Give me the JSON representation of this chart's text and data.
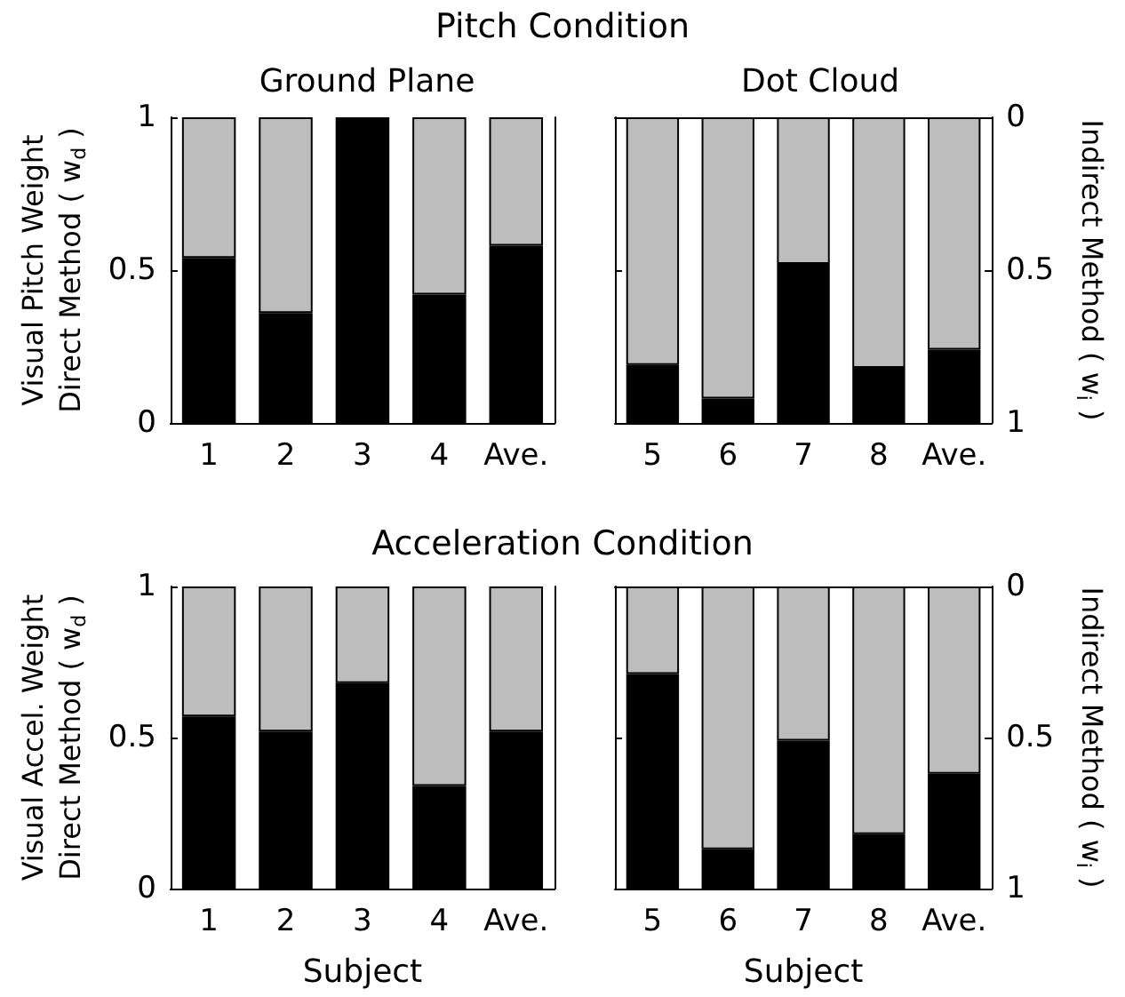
{
  "chart_data": [
    {
      "type": "bar",
      "title": "Pitch Condition",
      "subtitle": "Ground Plane",
      "ylabel": "Visual Pitch Weight\nDirect Method ( w$_{d}$ )",
      "categories": [
        "1",
        "2",
        "3",
        "4",
        "Ave."
      ],
      "stacked": true,
      "series": [
        {
          "color": "#000000",
          "values": [
            0.54,
            0.36,
            1.0,
            0.42,
            0.58
          ]
        },
        {
          "color": "#bdbdbd",
          "values": [
            0.46,
            0.64,
            0,
            0.58,
            0.42
          ]
        }
      ],
      "ylim": [
        0,
        1
      ],
      "yticks": [
        0,
        0.5,
        1
      ],
      "grid": false
    },
    {
      "type": "bar",
      "subtitle": "Dot Cloud",
      "y2label": "Indirect Method ( w$_{i}$ )",
      "categories": [
        "5",
        "6",
        "7",
        "8",
        "Ave."
      ],
      "stacked": true,
      "series": [
        {
          "color": "#bdbdbd",
          "axis": "y2",
          "values": [
            0.81,
            0.92,
            0.48,
            0.82,
            0.76
          ]
        },
        {
          "color": "#000000",
          "axis": "y2",
          "values": [
            0.19,
            0.08,
            0.52,
            0.18,
            0.24
          ]
        }
      ],
      "y2lim": [
        1,
        0
      ],
      "y2ticks": [
        0,
        0.5,
        1
      ],
      "grid": false
    },
    {
      "type": "bar",
      "title": "Acceleration Condition",
      "ylabel": "Visual Accel. Weight\nDirect Method ( w$_{d}$ )",
      "xlabel": "Subject",
      "categories": [
        "1",
        "2",
        "3",
        "4",
        "Ave."
      ],
      "stacked": true,
      "series": [
        {
          "color": "#000000",
          "values": [
            0.57,
            0.52,
            0.68,
            0.34,
            0.52
          ]
        },
        {
          "color": "#bdbdbd",
          "values": [
            0.43,
            0.48,
            0.32,
            0.66,
            0.48
          ]
        }
      ],
      "ylim": [
        0,
        1
      ],
      "yticks": [
        0,
        0.5,
        1
      ],
      "grid": false
    },
    {
      "type": "bar",
      "y2label": "Indirect Method ( w$_{i}$ )",
      "xlabel": "Subject",
      "categories": [
        "5",
        "6",
        "7",
        "8",
        "Ave."
      ],
      "stacked": true,
      "series": [
        {
          "color": "#bdbdbd",
          "axis": "y2",
          "values": [
            0.29,
            0.87,
            0.51,
            0.82,
            0.62
          ]
        },
        {
          "color": "#000000",
          "axis": "y2",
          "values": [
            0.71,
            0.13,
            0.49,
            0.18,
            0.38
          ]
        }
      ],
      "y2lim": [
        1,
        0
      ],
      "y2ticks": [
        0,
        0.5,
        1
      ],
      "grid": false
    }
  ]
}
